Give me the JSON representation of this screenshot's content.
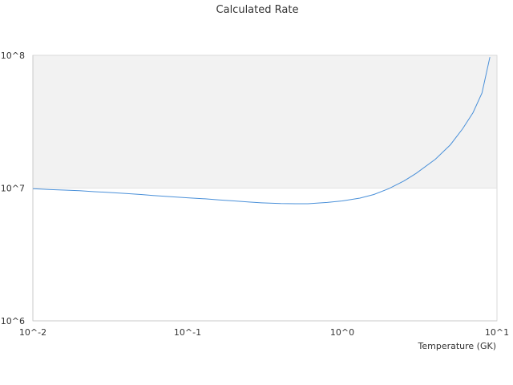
{
  "chart_data": {
    "type": "line",
    "title": "Calculated Rate",
    "xlabel": "Temperature (GK)",
    "ylabel": "",
    "x_scale": "log",
    "y_scale": "log",
    "xlim": [
      0.01,
      10
    ],
    "ylim": [
      1000000,
      100000000
    ],
    "x_ticks": [
      {
        "value": 0.01,
        "label": "10^-2"
      },
      {
        "value": 0.1,
        "label": "10^-1"
      },
      {
        "value": 1,
        "label": "10^0"
      },
      {
        "value": 10,
        "label": "10^1"
      }
    ],
    "y_ticks": [
      {
        "value": 1000000,
        "label": "10^6"
      },
      {
        "value": 10000000,
        "label": "10^7"
      },
      {
        "value": 100000000,
        "label": "10^8"
      }
    ],
    "grid": false,
    "legend": "none",
    "shaded_band": {
      "y_from": 10000000,
      "y_to": 100000000,
      "color": "#f2f2f2"
    },
    "colors": {
      "series": "#4a90d9",
      "plot_border": "#d9d9d9"
    },
    "series": [
      {
        "x": [
          0.01,
          0.013,
          0.016,
          0.02,
          0.025,
          0.03,
          0.04,
          0.05,
          0.06,
          0.08,
          0.1,
          0.13,
          0.16,
          0.2,
          0.25,
          0.3,
          0.4,
          0.5,
          0.6,
          0.8,
          1.0,
          1.3,
          1.6,
          2.0,
          2.5,
          3.0,
          4.0,
          5.0,
          6.0,
          7.0,
          8.0,
          9.0
        ],
        "values": [
          9900000,
          9750000,
          9650000,
          9550000,
          9400000,
          9300000,
          9100000,
          8950000,
          8800000,
          8600000,
          8450000,
          8300000,
          8150000,
          8000000,
          7850000,
          7750000,
          7650000,
          7630000,
          7630000,
          7800000,
          8000000,
          8400000,
          8950000,
          9900000,
          11300000,
          12900000,
          16500000,
          21200000,
          28000000,
          37000000,
          52000000,
          97000000
        ]
      }
    ]
  }
}
